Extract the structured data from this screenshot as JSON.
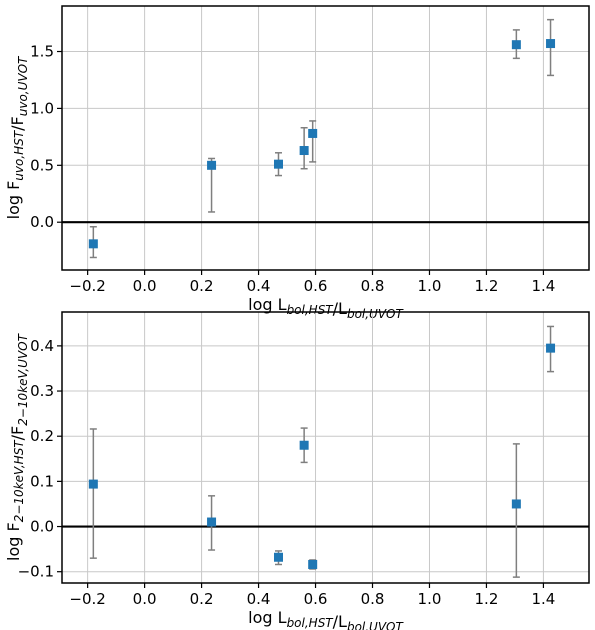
{
  "chart_data": [
    {
      "type": "scatter",
      "title": "",
      "xlabel": "log L_{bol,HST}/L_{bol,UVOT}",
      "ylabel": "log F_{uvo,HST}/F_{uvo,UVOT}",
      "xlim": [
        -0.29,
        1.56
      ],
      "ylim": [
        -0.42,
        1.9
      ],
      "xticks": [
        "−0.2",
        "0.0",
        "0.2",
        "0.4",
        "0.6",
        "0.8",
        "1.0",
        "1.2",
        "1.4"
      ],
      "xtick_values": [
        -0.2,
        0.0,
        0.2,
        0.4,
        0.6,
        0.8,
        1.0,
        1.2,
        1.4
      ],
      "yticks": [
        "0.0",
        "0.5",
        "1.0",
        "1.5"
      ],
      "ytick_values": [
        0.0,
        0.5,
        1.0,
        1.5
      ],
      "reference_line_y": 0.0,
      "grid": true,
      "marker_color": "#1f77b4",
      "errorbar_color": "#7f7f7f",
      "points": [
        {
          "x": -0.18,
          "y": -0.19,
          "yerr_low": 0.12,
          "yerr_high": 0.15
        },
        {
          "x": 0.235,
          "y": 0.5,
          "yerr_low": 0.41,
          "yerr_high": 0.06
        },
        {
          "x": 0.47,
          "y": 0.51,
          "yerr_low": 0.1,
          "yerr_high": 0.1
        },
        {
          "x": 0.56,
          "y": 0.63,
          "yerr_low": 0.16,
          "yerr_high": 0.2
        },
        {
          "x": 0.59,
          "y": 0.78,
          "yerr_low": 0.25,
          "yerr_high": 0.11
        },
        {
          "x": 1.305,
          "y": 1.56,
          "yerr_low": 0.12,
          "yerr_high": 0.13
        },
        {
          "x": 1.425,
          "y": 1.57,
          "yerr_low": 0.28,
          "yerr_high": 0.21
        }
      ]
    },
    {
      "type": "scatter",
      "title": "",
      "xlabel": "log L_{bol,HST}/L_{bol,UVOT}",
      "ylabel": "log F_{2−10keV,HST}/F_{2−10keV,UVOT}",
      "xlim": [
        -0.29,
        1.56
      ],
      "ylim": [
        -0.125,
        0.475
      ],
      "xticks": [
        "−0.2",
        "0.0",
        "0.2",
        "0.4",
        "0.6",
        "0.8",
        "1.0",
        "1.2",
        "1.4"
      ],
      "xtick_values": [
        -0.2,
        0.0,
        0.2,
        0.4,
        0.6,
        0.8,
        1.0,
        1.2,
        1.4
      ],
      "yticks": [
        "−0.1",
        "0.0",
        "0.1",
        "0.2",
        "0.3",
        "0.4"
      ],
      "ytick_values": [
        -0.1,
        0.0,
        0.1,
        0.2,
        0.3,
        0.4
      ],
      "reference_line_y": 0.0,
      "grid": true,
      "marker_color": "#1f77b4",
      "errorbar_color": "#7f7f7f",
      "points": [
        {
          "x": -0.18,
          "y": 0.094,
          "yerr_low": 0.164,
          "yerr_high": 0.122
        },
        {
          "x": 0.235,
          "y": 0.01,
          "yerr_low": 0.062,
          "yerr_high": 0.058
        },
        {
          "x": 0.47,
          "y": -0.068,
          "yerr_low": 0.016,
          "yerr_high": 0.014
        },
        {
          "x": 0.56,
          "y": 0.18,
          "yerr_low": 0.038,
          "yerr_high": 0.038
        },
        {
          "x": 0.59,
          "y": -0.084,
          "yerr_low": 0.01,
          "yerr_high": 0.01
        },
        {
          "x": 1.305,
          "y": 0.05,
          "yerr_low": 0.162,
          "yerr_high": 0.133
        },
        {
          "x": 1.425,
          "y": 0.395,
          "yerr_low": 0.052,
          "yerr_high": 0.048
        }
      ]
    }
  ]
}
